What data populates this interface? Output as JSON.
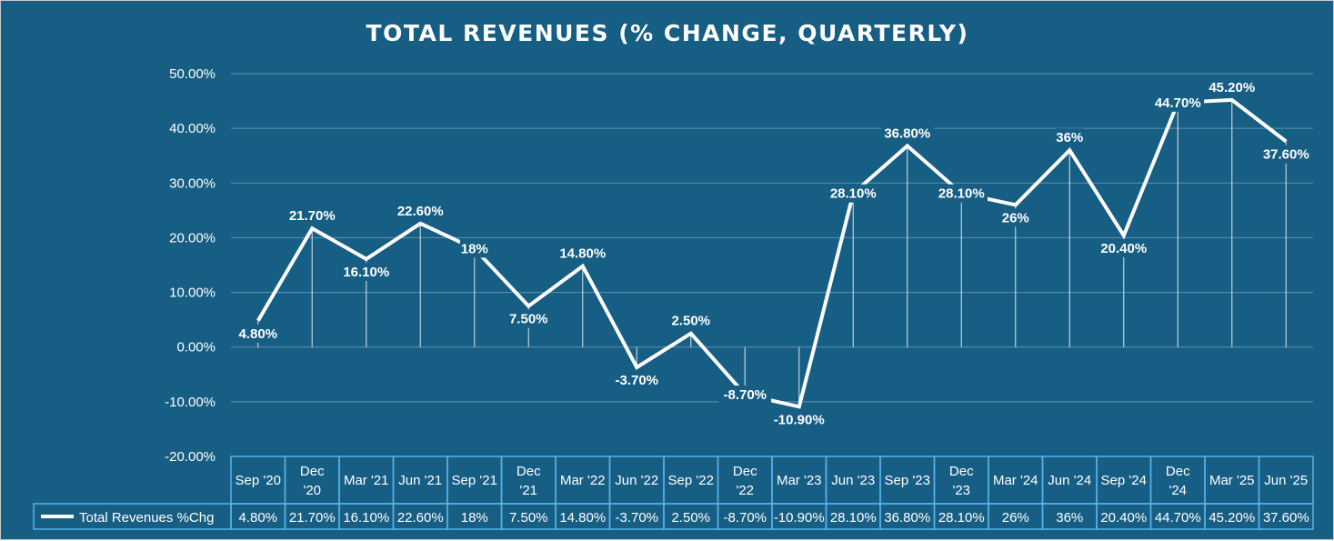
{
  "chart_data": {
    "type": "line",
    "title": "TOTAL REVENUES (% CHANGE, QUARTERLY)",
    "categories": [
      [
        "Sep '20"
      ],
      [
        "Dec",
        "'20"
      ],
      [
        "Mar '21"
      ],
      [
        "Jun '21"
      ],
      [
        "Sep '21"
      ],
      [
        "Dec",
        "'21"
      ],
      [
        "Mar '22"
      ],
      [
        "Jun '22"
      ],
      [
        "Sep '22"
      ],
      [
        "Dec",
        "'22"
      ],
      [
        "Mar '23"
      ],
      [
        "Jun '23"
      ],
      [
        "Sep '23"
      ],
      [
        "Dec",
        "'23"
      ],
      [
        "Mar '24"
      ],
      [
        "Jun '24"
      ],
      [
        "Sep '24"
      ],
      [
        "Dec",
        "'24"
      ],
      [
        "Mar '25"
      ],
      [
        "Jun '25"
      ]
    ],
    "series": [
      {
        "name": "Total Revenues %Chg",
        "values": [
          4.8,
          21.7,
          16.1,
          22.6,
          18,
          7.5,
          14.8,
          -3.7,
          2.5,
          -8.7,
          -10.9,
          28.1,
          36.8,
          28.1,
          26,
          36,
          20.4,
          44.7,
          45.2,
          37.6
        ],
        "labels": [
          "4.80%",
          "21.70%",
          "16.10%",
          "22.60%",
          "18%",
          "7.50%",
          "14.80%",
          "-3.70%",
          "2.50%",
          "-8.70%",
          "-10.90%",
          "28.10%",
          "36.80%",
          "28.10%",
          "26%",
          "36%",
          "20.40%",
          "44.70%",
          "45.20%",
          "37.60%"
        ],
        "color": "#ffffff"
      }
    ],
    "y_ticks": [
      50,
      40,
      30,
      20,
      10,
      0,
      -10,
      -20
    ],
    "y_tick_labels": [
      "50.00%",
      "40.00%",
      "30.00%",
      "20.00%",
      "10.00%",
      "0.00%",
      "-10.00%",
      "-20.00%"
    ],
    "ylim": [
      -20,
      50
    ],
    "grid": true,
    "data_table": true,
    "colors": {
      "background": "#175e84",
      "table_border": "#56b4e9",
      "gridline": "#5f93b0"
    }
  }
}
